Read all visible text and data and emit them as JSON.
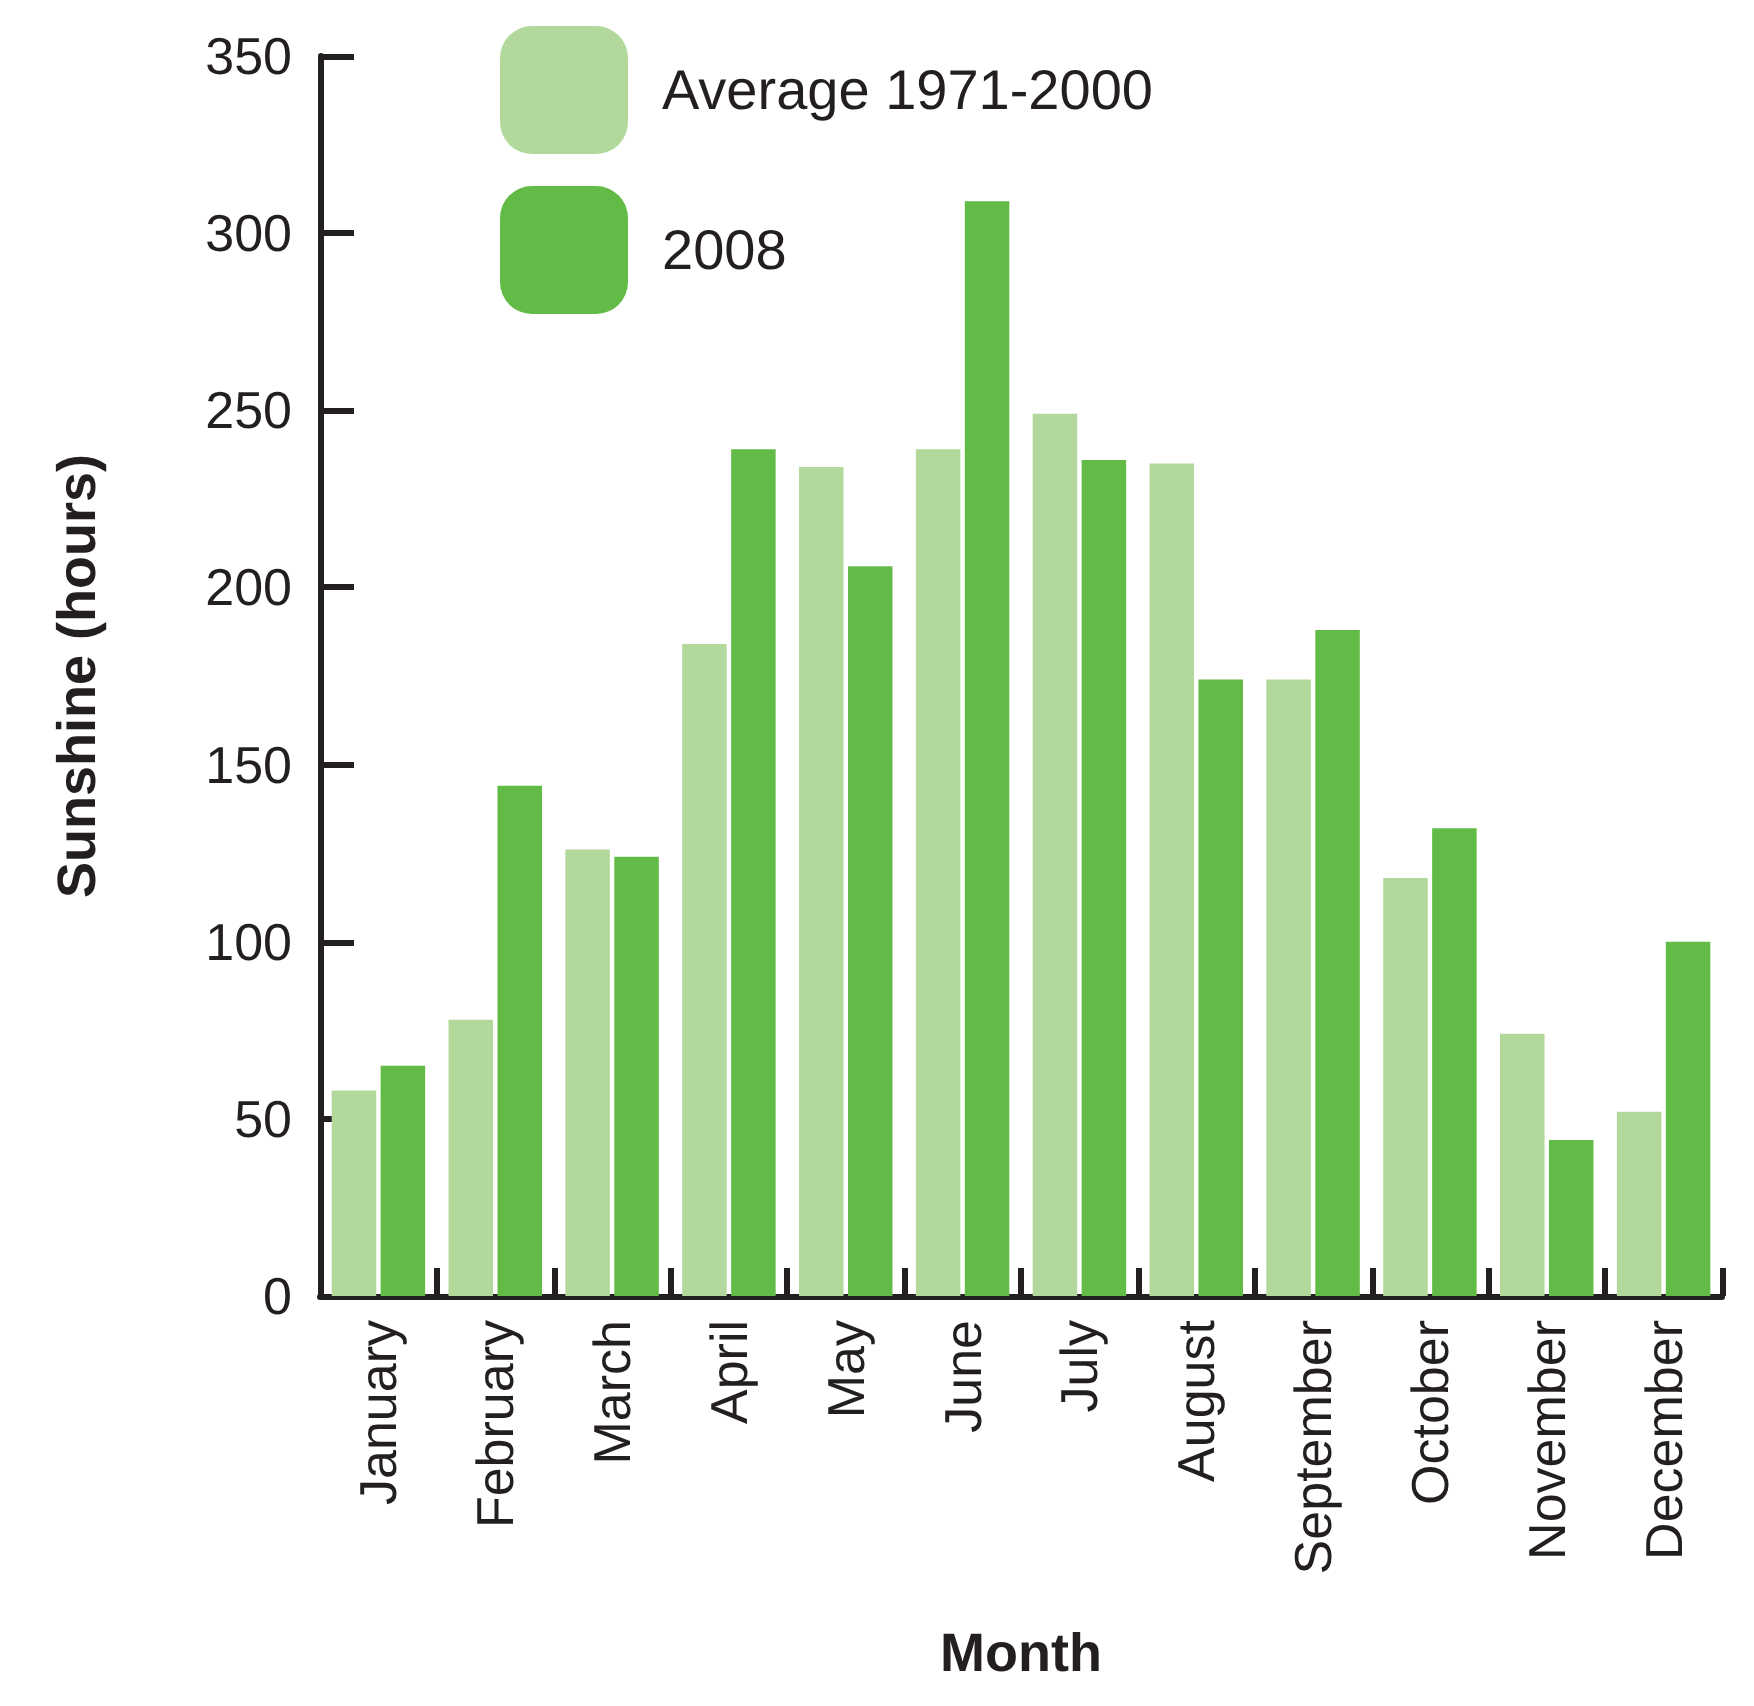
{
  "chart_data": {
    "type": "bar",
    "xlabel": "Month",
    "ylabel": "Sunshine (hours)",
    "categories": [
      "January",
      "February",
      "March",
      "April",
      "May",
      "June",
      "July",
      "August",
      "September",
      "October",
      "November",
      "December"
    ],
    "series": [
      {
        "name": "Average 1971-2000",
        "color": "#b2d89b",
        "values": [
          58,
          78,
          126,
          184,
          234,
          239,
          249,
          235,
          174,
          118,
          74,
          52
        ]
      },
      {
        "name": "2008",
        "color": "#62bb47",
        "values": [
          65,
          144,
          124,
          239,
          206,
          309,
          236,
          174,
          188,
          132,
          44,
          100
        ]
      }
    ],
    "ylim": [
      0,
      350
    ],
    "yticks": [
      0,
      50,
      100,
      150,
      200,
      250,
      300,
      350
    ],
    "grid": false,
    "legend": "top"
  }
}
